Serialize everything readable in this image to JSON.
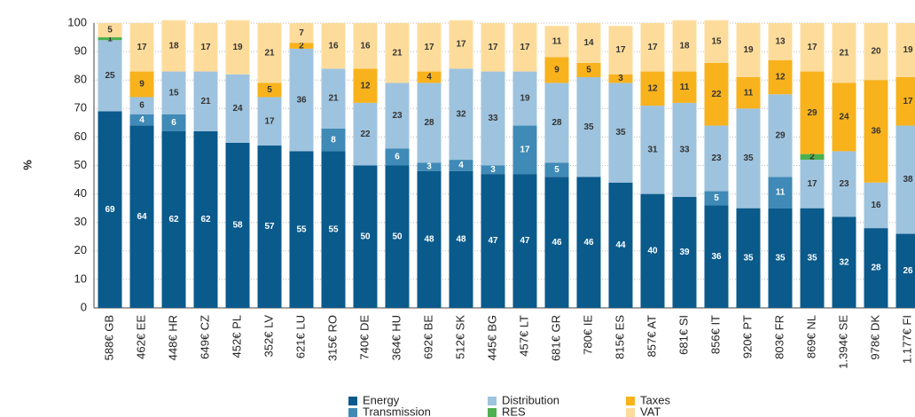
{
  "chart_data": {
    "type": "stacked_bar",
    "y_label": "%",
    "categories": [
      "588€ GB",
      "462€ EE",
      "448€ HR",
      "649€ CZ",
      "452€ PL",
      "352€ LV",
      "621€ LU",
      "315€ RO",
      "740€ DE",
      "364€ HU",
      "692€ BE",
      "512€ SK",
      "445€ BG",
      "457€ LT",
      "681€ GR",
      "780€ IE",
      "815€ ES",
      "857€ AT",
      "681€ SI",
      "856€ IT",
      "920€ PT",
      "803€ FR",
      "869€ NL",
      "1.394€ SE",
      "978€ DK",
      "1.177€ FI"
    ],
    "series": [
      {
        "name": "Energy",
        "color": "#0a5a8c",
        "values": [
          69,
          64,
          62,
          62,
          58,
          57,
          55,
          55,
          50,
          50,
          48,
          48,
          47,
          47,
          46,
          46,
          44,
          40,
          39,
          36,
          35,
          35,
          35,
          32,
          28,
          26
        ]
      },
      {
        "name": "Transmission",
        "color": "#3f8ab6",
        "values": [
          null,
          4,
          6,
          null,
          null,
          null,
          null,
          8,
          null,
          6,
          3,
          4,
          3,
          17,
          5,
          null,
          null,
          null,
          null,
          5,
          null,
          11,
          null,
          null,
          null,
          null
        ]
      },
      {
        "name": "Distribution",
        "color": "#9ec3de",
        "values": [
          25,
          6,
          15,
          21,
          24,
          17,
          36,
          21,
          22,
          23,
          28,
          32,
          33,
          19,
          28,
          35,
          35,
          31,
          33,
          23,
          35,
          29,
          17,
          23,
          16,
          38
        ]
      },
      {
        "name": "RES",
        "color": "#4caf50",
        "values": [
          1,
          null,
          null,
          null,
          null,
          null,
          null,
          null,
          null,
          null,
          null,
          null,
          null,
          null,
          null,
          null,
          null,
          null,
          null,
          null,
          null,
          null,
          2,
          null,
          null,
          null
        ]
      },
      {
        "name": "Taxes",
        "color": "#f8b21c",
        "values": [
          null,
          9,
          null,
          null,
          null,
          5,
          2,
          null,
          12,
          null,
          4,
          null,
          null,
          null,
          9,
          5,
          3,
          12,
          11,
          22,
          11,
          12,
          29,
          24,
          36,
          17
        ]
      },
      {
        "name": "VAT",
        "color": "#fddc9b",
        "values": [
          5,
          17,
          18,
          17,
          19,
          21,
          7,
          16,
          16,
          21,
          17,
          17,
          17,
          17,
          11,
          14,
          17,
          17,
          18,
          15,
          19,
          13,
          17,
          21,
          20,
          19
        ]
      }
    ],
    "ylim": [
      0,
      100
    ],
    "yticks": [
      0,
      10,
      20,
      30,
      40,
      50,
      60,
      70,
      80,
      90,
      100
    ],
    "grid": true
  }
}
